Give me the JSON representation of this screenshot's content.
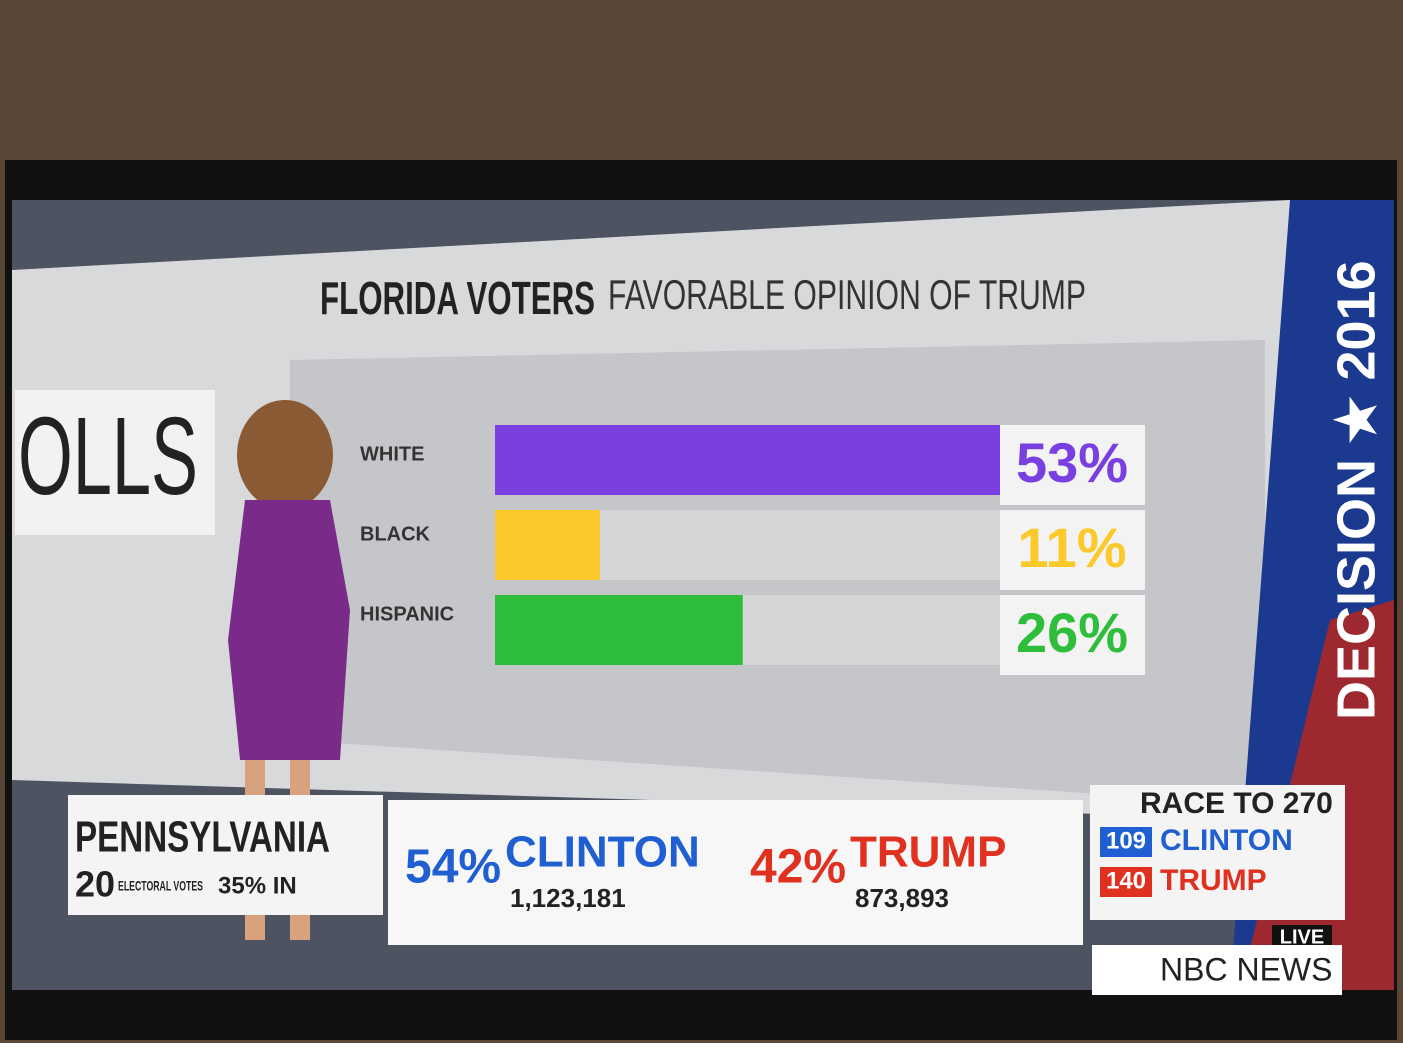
{
  "chart_data": {
    "type": "bar",
    "orientation": "horizontal",
    "title": "FLORIDA VOTERS",
    "subtitle": "FAVORABLE OPINION OF TRUMP",
    "categories": [
      "WHITE",
      "BLACK",
      "HISPANIC"
    ],
    "values": [
      53,
      11,
      26
    ],
    "value_labels": [
      "53%",
      "11%",
      "26%"
    ],
    "colors": [
      "#7a3fe0",
      "#fcc92a",
      "#2fbd3c"
    ]
  },
  "wall": {
    "fragment": "OLLS",
    "banner": "DECISION ★ 2016"
  },
  "ticker": {
    "state": "PENNSYLVANIA",
    "electoral": "20",
    "electoral_label": "ELECTORAL VOTES",
    "reporting": "35% IN",
    "candidates": [
      {
        "pct": "54%",
        "name": "CLINTON",
        "votes": "1,123,181",
        "color": "#1f5fd1"
      },
      {
        "pct": "42%",
        "name": "TRUMP",
        "votes": "873,893",
        "color": "#e0301f"
      }
    ],
    "race": {
      "title": "RACE TO 270",
      "rows": [
        {
          "count": "109",
          "name": "CLINTON"
        },
        {
          "count": "140",
          "name": "TRUMP"
        }
      ]
    },
    "live": "LIVE",
    "network": "NBC NEWS"
  }
}
